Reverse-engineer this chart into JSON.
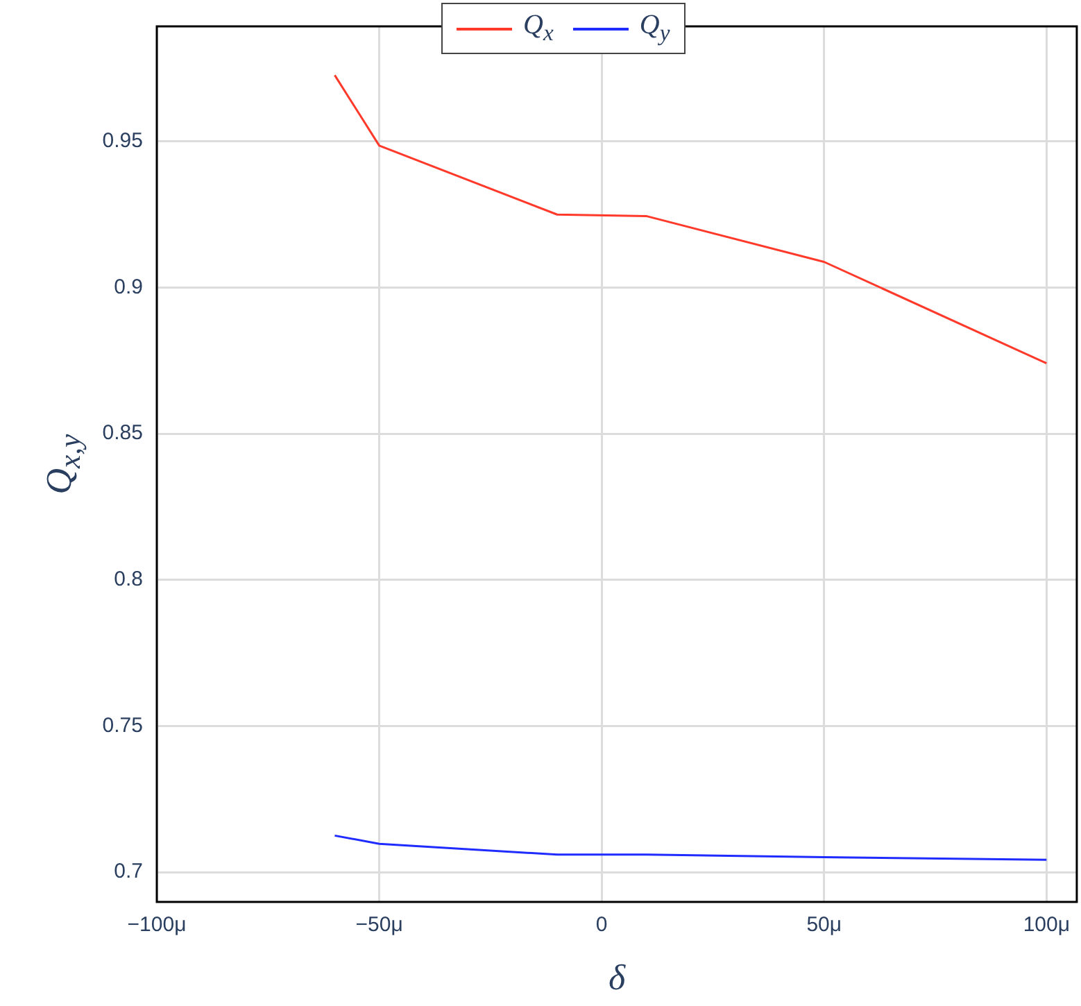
{
  "chart_data": {
    "type": "line",
    "xlabel": "δ",
    "ylabel": "Q$_{x,y}$",
    "x": [
      -60,
      -50,
      -10,
      10,
      50,
      100
    ],
    "series": [
      {
        "name": "Q$_{x}$",
        "color": "#ff3a2b",
        "values": [
          0.9727,
          0.9486,
          0.925,
          0.9245,
          0.9088,
          0.8741
        ]
      },
      {
        "name": "Q$_{y}$",
        "color": "#1f2bff",
        "values": [
          0.7125,
          0.7097,
          0.706,
          0.706,
          0.7051,
          0.7042
        ]
      }
    ],
    "xlim": [
      -100,
      106.8
    ],
    "xticks": [
      {
        "value": -100,
        "label": "−100μ"
      },
      {
        "value": -50,
        "label": "−50μ"
      },
      0,
      {
        "value": 50,
        "label": "50μ"
      },
      {
        "value": 100,
        "label": "100μ"
      }
    ],
    "ylim": [
      0.6898,
      0.9894
    ],
    "yticks": [
      0.7,
      0.75,
      0.8,
      0.85,
      0.9,
      0.95
    ],
    "grid": true,
    "legend": "top",
    "marker": "none",
    "line_style": "solid"
  }
}
